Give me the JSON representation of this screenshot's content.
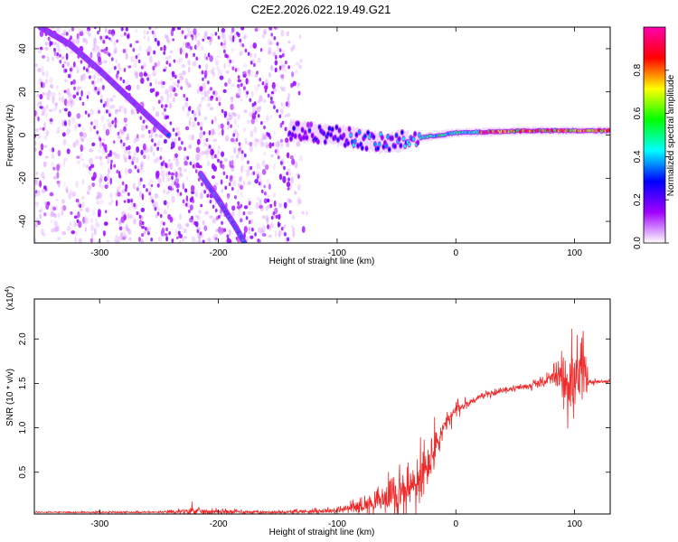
{
  "title": "C2E2.2026.022.19.49.G21",
  "chart_data": [
    {
      "type": "heatmap",
      "name": "spectrogram",
      "xlabel": "Height of straight line (km)",
      "ylabel": "Frequency (Hz)",
      "xlim": [
        -355,
        130
      ],
      "ylim": [
        -50,
        50
      ],
      "xticks": [
        -300,
        -200,
        -100,
        0,
        100
      ],
      "yticks": [
        -40,
        -20,
        0,
        20,
        40
      ],
      "colorbar": {
        "label": "Normalized spectral amplitude",
        "range": [
          0,
          1
        ],
        "ticks": [
          0.0,
          0.2,
          0.4,
          0.6,
          0.8
        ],
        "colormap": [
          "#ffffff",
          "#a000ff",
          "#0000ff",
          "#00ffff",
          "#00ff00",
          "#ffff00",
          "#ff0000",
          "#ff00b0"
        ]
      },
      "features": [
        {
          "label": "descending track 1",
          "points": [
            [
              -350,
              50
            ],
            [
              -325,
              42
            ],
            [
              -300,
              30
            ],
            [
              -275,
              17
            ],
            [
              -252,
              5
            ],
            [
              -242,
              0
            ]
          ]
        },
        {
          "label": "descending track 2",
          "points": [
            [
              -215,
              -18
            ],
            [
              -200,
              -30
            ],
            [
              -185,
              -43
            ],
            [
              -178,
              -50
            ]
          ]
        },
        {
          "label": "direct signal",
          "points": [
            [
              -140,
              2
            ],
            [
              -100,
              0
            ],
            [
              -60,
              -4
            ],
            [
              -40,
              -2
            ],
            [
              0,
              1
            ],
            [
              60,
              2
            ],
            [
              130,
              2
            ]
          ]
        }
      ]
    },
    {
      "type": "line",
      "name": "snr",
      "xlabel": "Height of straight line (km)",
      "ylabel": "SNR (10 * v/v)",
      "scale_label": "(x10",
      "scale_exp": "4",
      "scale_close": ")",
      "xlim": [
        -355,
        130
      ],
      "ylim": [
        0.03,
        2.45
      ],
      "xticks": [
        -300,
        -200,
        -100,
        0,
        100
      ],
      "yticks": [
        0.5,
        1.0,
        1.5,
        2.0
      ],
      "ytick_labels": [
        "0.5",
        "1.0",
        "1.5",
        "2.0"
      ],
      "color": "#ee2a2a",
      "series_envelope": {
        "x": [
          -355,
          -250,
          -225,
          -222,
          -218,
          -150,
          -100,
          -80,
          -60,
          -52,
          -45,
          -35,
          -30,
          -25,
          -20,
          -15,
          -10,
          0,
          20,
          40,
          60,
          70,
          80,
          88,
          93,
          97,
          100,
          105,
          110,
          112,
          130
        ],
        "base": [
          0.05,
          0.05,
          0.06,
          0.08,
          0.06,
          0.05,
          0.07,
          0.12,
          0.2,
          0.3,
          0.25,
          0.35,
          0.4,
          0.5,
          0.7,
          0.85,
          1.0,
          1.2,
          1.35,
          1.42,
          1.47,
          1.5,
          1.55,
          1.58,
          1.55,
          1.52,
          1.5,
          1.55,
          1.57,
          1.52,
          1.52
        ],
        "noise": [
          0.01,
          0.015,
          0.05,
          0.12,
          0.05,
          0.02,
          0.05,
          0.12,
          0.2,
          0.45,
          0.3,
          0.5,
          0.6,
          0.45,
          0.5,
          0.3,
          0.2,
          0.12,
          0.05,
          0.04,
          0.05,
          0.08,
          0.12,
          0.25,
          0.55,
          0.7,
          0.6,
          0.6,
          0.45,
          0.05,
          0.02
        ]
      }
    }
  ]
}
